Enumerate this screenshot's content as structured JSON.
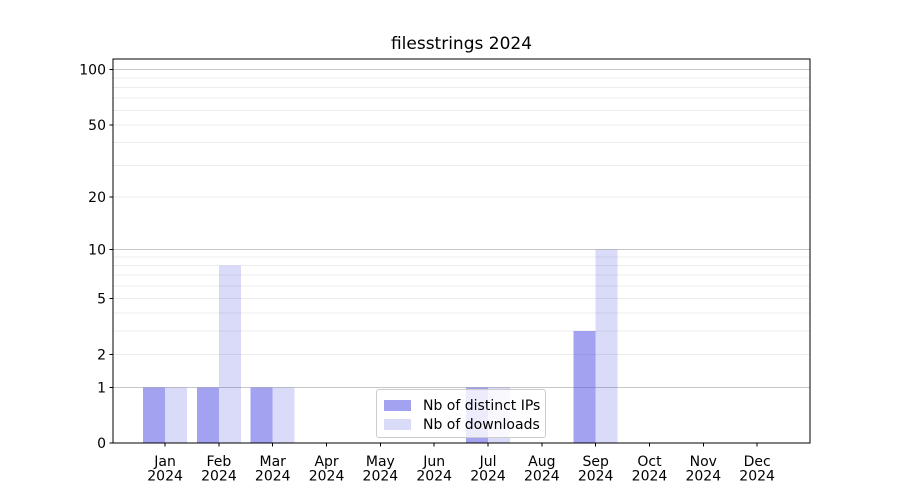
{
  "chart_data": {
    "type": "bar",
    "title": "filesstrings 2024",
    "categories": [
      "Jan",
      "Feb",
      "Mar",
      "Apr",
      "May",
      "Jun",
      "Jul",
      "Aug",
      "Sep",
      "Oct",
      "Nov",
      "Dec"
    ],
    "category_year_label": "2024",
    "series": [
      {
        "name": "Nb of distinct IPs",
        "color": "rgba(70,70,225,0.5)",
        "values": [
          1,
          1,
          1,
          0,
          0,
          0,
          1,
          0,
          3,
          0,
          0,
          0
        ]
      },
      {
        "name": "Nb of downloads",
        "color": "rgba(70,70,225,0.2)",
        "values": [
          1,
          8,
          1,
          0,
          0,
          0,
          1,
          0,
          10,
          0,
          0,
          0
        ]
      }
    ],
    "xlabel": "",
    "ylabel": "",
    "yscale": "symlog (log1p)",
    "ylim": [
      0,
      115
    ],
    "y_tick_labels": [
      0,
      1,
      2,
      5,
      10,
      20,
      50,
      100
    ],
    "y_major_gridlines": [
      1,
      10,
      100
    ],
    "y_minor_gridlines": [
      2,
      3,
      4,
      5,
      6,
      7,
      8,
      9,
      20,
      30,
      40,
      50,
      60,
      70,
      80,
      90
    ],
    "grid": "on",
    "legend_position": "lower center"
  },
  "colors": {
    "major_grid": "#c6c6c6",
    "minor_grid": "#ececec",
    "axis": "#000000",
    "legend_border": "#cccccc",
    "background": "#ffffff"
  }
}
